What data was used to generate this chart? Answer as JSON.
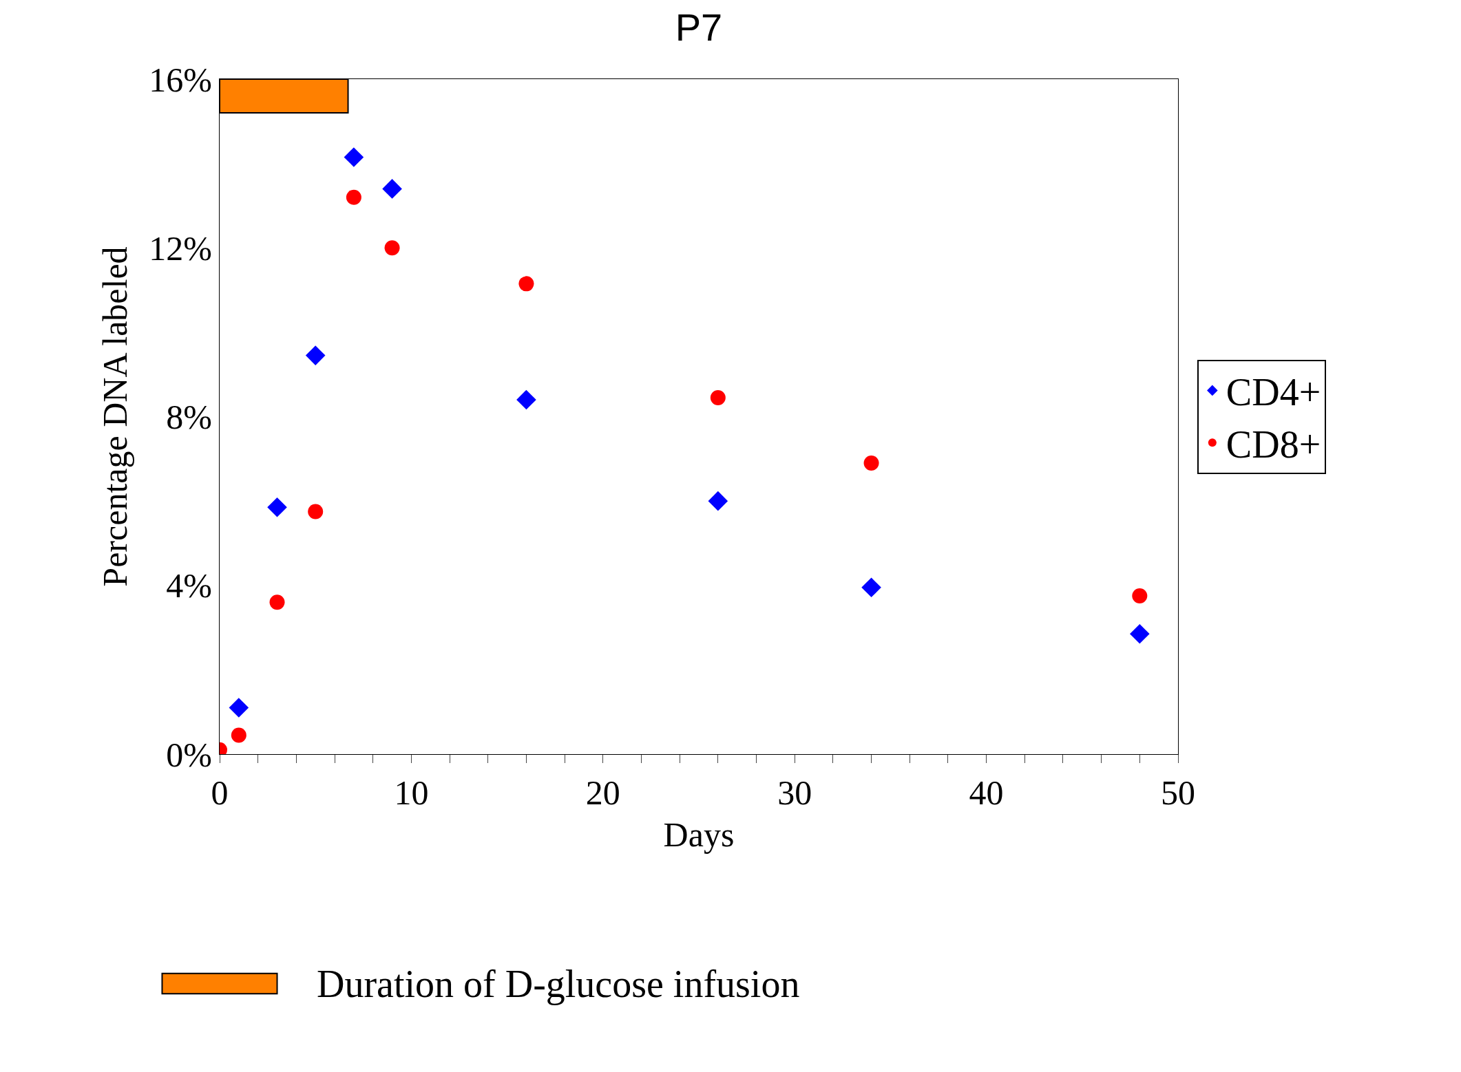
{
  "chart_data": {
    "type": "scatter",
    "title": "P7",
    "xlabel": "Days",
    "ylabel": "Percentage DNA labeled",
    "xlim": [
      0,
      50
    ],
    "xticks": [
      0,
      {
        "value": 2,
        "label": null
      },
      {
        "value": 4,
        "label": null
      },
      {
        "value": 6,
        "label": null
      },
      {
        "value": 8,
        "label": null
      },
      10,
      {
        "value": 12,
        "label": null
      },
      {
        "value": 14,
        "label": null
      },
      {
        "value": 16,
        "label": null
      },
      {
        "value": 18,
        "label": null
      },
      20,
      {
        "value": 22,
        "label": null
      },
      {
        "value": 24,
        "label": null
      },
      {
        "value": 26,
        "label": null
      },
      {
        "value": 28,
        "label": null
      },
      30,
      {
        "value": 32,
        "label": null
      },
      {
        "value": 34,
        "label": null
      },
      {
        "value": 36,
        "label": null
      },
      {
        "value": 38,
        "label": null
      },
      40,
      {
        "value": 42,
        "label": null
      },
      {
        "value": 44,
        "label": null
      },
      {
        "value": 46,
        "label": null
      },
      {
        "value": 48,
        "label": null
      },
      50
    ],
    "ylim": [
      0,
      16
    ],
    "yticks": [
      {
        "value": 0,
        "label": "0%"
      },
      {
        "value": 4,
        "label": "4%"
      },
      {
        "value": 8,
        "label": "8%"
      },
      {
        "value": 12,
        "label": "12%"
      },
      {
        "value": 16,
        "label": "16%"
      }
    ],
    "legend": "right",
    "series": [
      {
        "name": "CD4+",
        "color": "#0000ff",
        "marker": "diamond",
        "x": [
          1,
          3,
          5,
          7,
          9,
          16,
          26,
          34,
          48
        ],
        "values": [
          1.1,
          5.85,
          9.45,
          14.15,
          13.4,
          8.4,
          6.0,
          3.95,
          2.85
        ]
      },
      {
        "name": "CD8+",
        "color": "#ff0000",
        "marker": "circle",
        "x": [
          0,
          1,
          3,
          5,
          7,
          9,
          16,
          26,
          34,
          48
        ],
        "values": [
          0.1,
          0.45,
          3.6,
          5.75,
          13.2,
          12.0,
          11.15,
          8.45,
          6.9,
          3.75
        ]
      }
    ],
    "bands": [
      {
        "axis": "x",
        "from": 0,
        "to": 6.7,
        "label": "Duration of D-glucose infusion",
        "color": "#ff8000"
      }
    ]
  }
}
